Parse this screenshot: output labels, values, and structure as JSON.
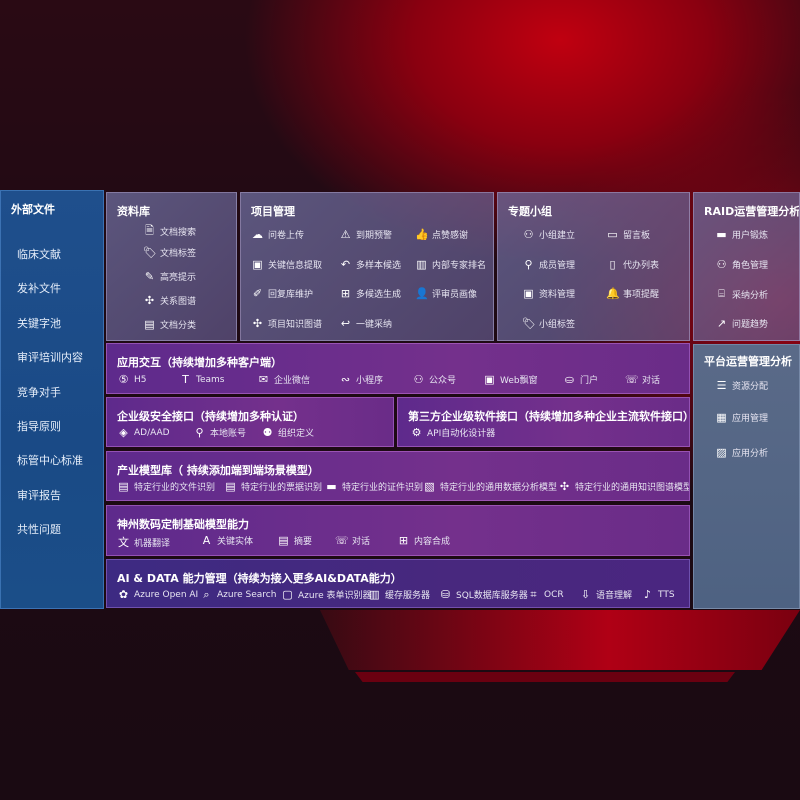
{
  "sidebar": {
    "title": "外部文件",
    "items": [
      "临床文献",
      "发补文件",
      "关键字池",
      "审评培训内容",
      "竞争对手",
      "指导原则",
      "标管中心标准",
      "审评报告",
      "共性问题"
    ]
  },
  "panels": {
    "library": {
      "title": "资料库",
      "items": [
        {
          "label": "文档搜索",
          "icon": "document-search-icon"
        },
        {
          "label": "文档标签",
          "icon": "tag-icon"
        },
        {
          "label": "高亮提示",
          "icon": "pen-icon"
        },
        {
          "label": "关系图谱",
          "icon": "graph-icon"
        },
        {
          "label": "文档分类",
          "icon": "documents-icon"
        }
      ]
    },
    "project": {
      "title": "项目管理",
      "items": [
        {
          "label": "问卷上传",
          "icon": "cloud-upload-icon"
        },
        {
          "label": "到期预警",
          "icon": "alarm-icon"
        },
        {
          "label": "点赞感谢",
          "icon": "thumbs-up-icon"
        },
        {
          "label": "关键信息提取",
          "icon": "window-icon"
        },
        {
          "label": "多样本候选",
          "icon": "reply-all-icon"
        },
        {
          "label": "内部专家排名",
          "icon": "ranking-icon"
        },
        {
          "label": "回复库维护",
          "icon": "edit-icon"
        },
        {
          "label": "多候选生成",
          "icon": "puzzle-icon"
        },
        {
          "label": "评审员画像",
          "icon": "user-icon"
        },
        {
          "label": "项目知识图谱",
          "icon": "graph-icon"
        },
        {
          "label": "一键采纳",
          "icon": "reply-icon"
        }
      ]
    },
    "group": {
      "title": "专题小组",
      "items": [
        {
          "label": "小组建立",
          "icon": "users-icon"
        },
        {
          "label": "留言板",
          "icon": "bbs-icon"
        },
        {
          "label": "成员管理",
          "icon": "user-add-icon"
        },
        {
          "label": "代办列表",
          "icon": "clipboard-icon"
        },
        {
          "label": "资料管理",
          "icon": "folder-icon"
        },
        {
          "label": "事项提醒",
          "icon": "bell-icon"
        },
        {
          "label": "小组标签",
          "icon": "tag-icon"
        }
      ]
    },
    "raid": {
      "title": "RAID运营管理分析",
      "items": [
        {
          "label": "用户锻炼",
          "icon": "id-card-icon"
        },
        {
          "label": "角色管理",
          "icon": "users-icon"
        },
        {
          "label": "采纳分析",
          "icon": "qa-icon"
        },
        {
          "label": "问题趋势",
          "icon": "trend-icon"
        }
      ]
    },
    "platform": {
      "title": "平台运营管理分析",
      "items": [
        {
          "label": "资源分配",
          "icon": "checklist-icon"
        },
        {
          "label": "应用管理",
          "icon": "apps-icon"
        },
        {
          "label": "应用分析",
          "icon": "chart-icon"
        }
      ]
    },
    "interaction": {
      "title": "应用交互（持续增加多种客户端）",
      "items": [
        {
          "label": "H5",
          "icon": "html5-icon"
        },
        {
          "label": "Teams",
          "icon": "teams-icon"
        },
        {
          "label": "企业微信",
          "icon": "wechat-icon"
        },
        {
          "label": "小程序",
          "icon": "miniprogram-icon"
        },
        {
          "label": "公众号",
          "icon": "users-icon"
        },
        {
          "label": "Web飘窗",
          "icon": "window-icon"
        },
        {
          "label": "门户",
          "icon": "portal-icon"
        },
        {
          "label": "对话",
          "icon": "chat-icon"
        }
      ]
    },
    "security": {
      "title": "企业级安全接口（持续增加多种认证）",
      "items": [
        {
          "label": "AD/AAD",
          "icon": "diamond-icon"
        },
        {
          "label": "本地账号",
          "icon": "user-lock-icon"
        },
        {
          "label": "组织定义",
          "icon": "org-icon"
        }
      ]
    },
    "thirdparty": {
      "title": "第三方企业级软件接口（持续增加多种企业主流软件接口）",
      "items": [
        {
          "label": "API自动化设计器",
          "icon": "gear-icon"
        }
      ]
    },
    "models": {
      "title": "产业模型库（ 持续添加端到端场景模型）",
      "items": [
        {
          "label": "特定行业的文件识别",
          "icon": "file-icon"
        },
        {
          "label": "特定行业的票据识别",
          "icon": "receipt-icon"
        },
        {
          "label": "特定行业的证件识别",
          "icon": "id-card-icon"
        },
        {
          "label": "特定行业的通用数据分析模型",
          "icon": "image-chart-icon"
        },
        {
          "label": "特定行业的通用知识图谱模型",
          "icon": "graph-icon"
        }
      ]
    },
    "base": {
      "title": "神州数码定制基础模型能力",
      "items": [
        {
          "label": "机器翻译",
          "icon": "translate-icon"
        },
        {
          "label": "关键实体",
          "icon": "entity-icon"
        },
        {
          "label": "摘要",
          "icon": "summary-icon"
        },
        {
          "label": "对话",
          "icon": "chat-icon"
        },
        {
          "label": "内容合成",
          "icon": "puzzle-icon"
        }
      ]
    },
    "aidata": {
      "title": "AI & DATA 能力管理（持续为接入更多AI&DATA能力）",
      "items": [
        {
          "label": "Azure Open AI",
          "icon": "openai-icon"
        },
        {
          "label": "Azure Search",
          "icon": "search-doc-icon"
        },
        {
          "label": "Azure 表单识别器",
          "icon": "form-icon"
        },
        {
          "label": "缓存服务器",
          "icon": "cache-icon"
        },
        {
          "label": "SQL数据库服务器",
          "icon": "database-icon"
        },
        {
          "label": "OCR",
          "icon": "ocr-icon"
        },
        {
          "label": "语音理解",
          "icon": "speech-icon"
        },
        {
          "label": "TTS",
          "icon": "tts-icon"
        }
      ]
    }
  }
}
